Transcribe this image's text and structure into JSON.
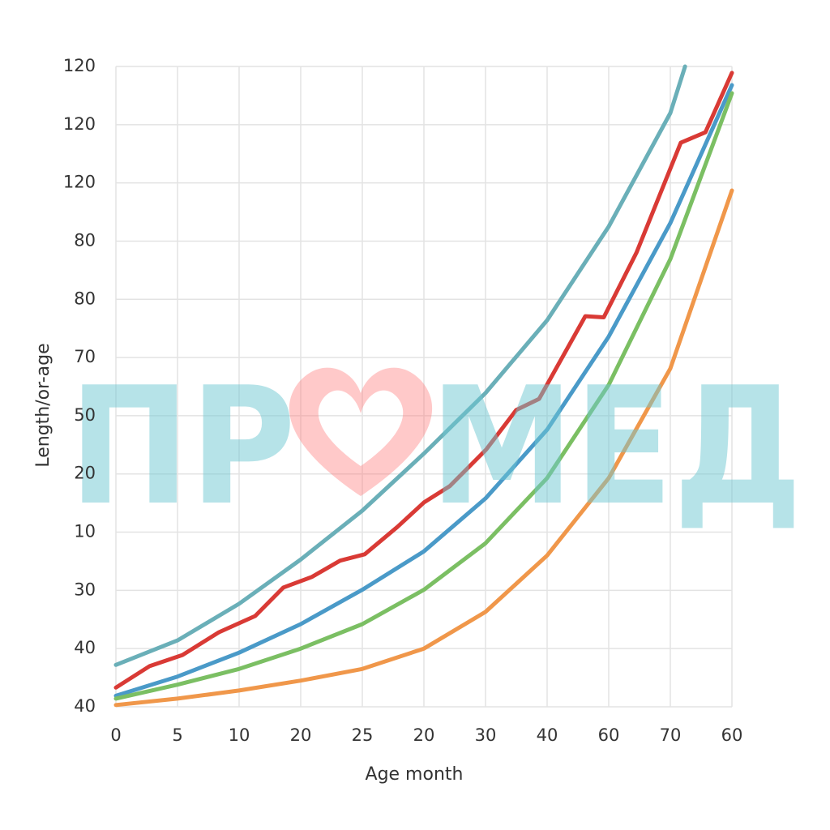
{
  "chart_data": {
    "type": "line",
    "xlabel": "Age month",
    "ylabel": "Length/or-age",
    "xlim": [
      0,
      10
    ],
    "ylim": [
      0,
      11
    ],
    "grid": true,
    "xticks": [
      {
        "value": 0,
        "label": "0"
      },
      {
        "value": 1,
        "label": "5"
      },
      {
        "value": 2,
        "label": "10"
      },
      {
        "value": 3,
        "label": "20"
      },
      {
        "value": 4,
        "label": "25"
      },
      {
        "value": 5,
        "label": "20"
      },
      {
        "value": 6,
        "label": "30"
      },
      {
        "value": 7,
        "label": "40"
      },
      {
        "value": 8,
        "label": "60"
      },
      {
        "value": 9,
        "label": "70"
      },
      {
        "value": 10,
        "label": "60"
      }
    ],
    "yticks": [
      {
        "value": 0,
        "label": "40"
      },
      {
        "value": 1,
        "label": "40"
      },
      {
        "value": 2,
        "label": "30"
      },
      {
        "value": 3,
        "label": "10"
      },
      {
        "value": 4,
        "label": "20"
      },
      {
        "value": 5,
        "label": "50"
      },
      {
        "value": 6,
        "label": "70"
      },
      {
        "value": 7,
        "label": "80"
      },
      {
        "value": 8,
        "label": "80"
      },
      {
        "value": 9,
        "label": "120"
      },
      {
        "value": 10,
        "label": "120"
      },
      {
        "value": 11,
        "label": "120"
      }
    ],
    "series": [
      {
        "color": "#6aafb8",
        "x": [
          0,
          1,
          2,
          3,
          4,
          5,
          6,
          7,
          8,
          9,
          9.24
        ],
        "values": [
          0.72,
          1.14,
          1.77,
          2.53,
          3.37,
          4.35,
          5.39,
          6.64,
          8.25,
          10.2,
          11
        ]
      },
      {
        "color": "#d93a35",
        "x": [
          0,
          0.55,
          1.08,
          1.67,
          2.26,
          2.72,
          3.18,
          3.64,
          4.04,
          4.57,
          5,
          5.42,
          6.01,
          6.5,
          6.87,
          7.62,
          7.92,
          8.45,
          9.17,
          9.57,
          10
        ],
        "values": [
          0.33,
          0.7,
          0.89,
          1.28,
          1.56,
          2.05,
          2.23,
          2.51,
          2.62,
          3.09,
          3.51,
          3.79,
          4.42,
          5.1,
          5.29,
          6.71,
          6.69,
          7.8,
          9.69,
          9.87,
          10.89
        ]
      },
      {
        "color": "#4a9ac8",
        "x": [
          0,
          1,
          2,
          3,
          4,
          5,
          6,
          7,
          8,
          9,
          10
        ],
        "values": [
          0.19,
          0.52,
          0.93,
          1.42,
          2.01,
          2.67,
          3.58,
          4.76,
          6.36,
          8.31,
          10.68
        ]
      },
      {
        "color": "#7bbf63",
        "x": [
          0,
          1,
          2,
          3,
          4,
          5,
          6,
          7,
          8,
          9,
          10
        ],
        "values": [
          0.14,
          0.38,
          0.65,
          1.0,
          1.42,
          2.01,
          2.81,
          3.93,
          5.53,
          7.69,
          10.54
        ]
      },
      {
        "color": "#f0974a",
        "x": [
          0,
          1,
          2,
          3,
          4,
          5,
          6,
          7,
          8,
          9,
          10
        ],
        "values": [
          0.03,
          0.14,
          0.28,
          0.45,
          0.65,
          1.0,
          1.63,
          2.6,
          3.93,
          5.81,
          8.87
        ]
      }
    ]
  },
  "watermark": {
    "left": "ПР",
    "right": "МЕД"
  }
}
